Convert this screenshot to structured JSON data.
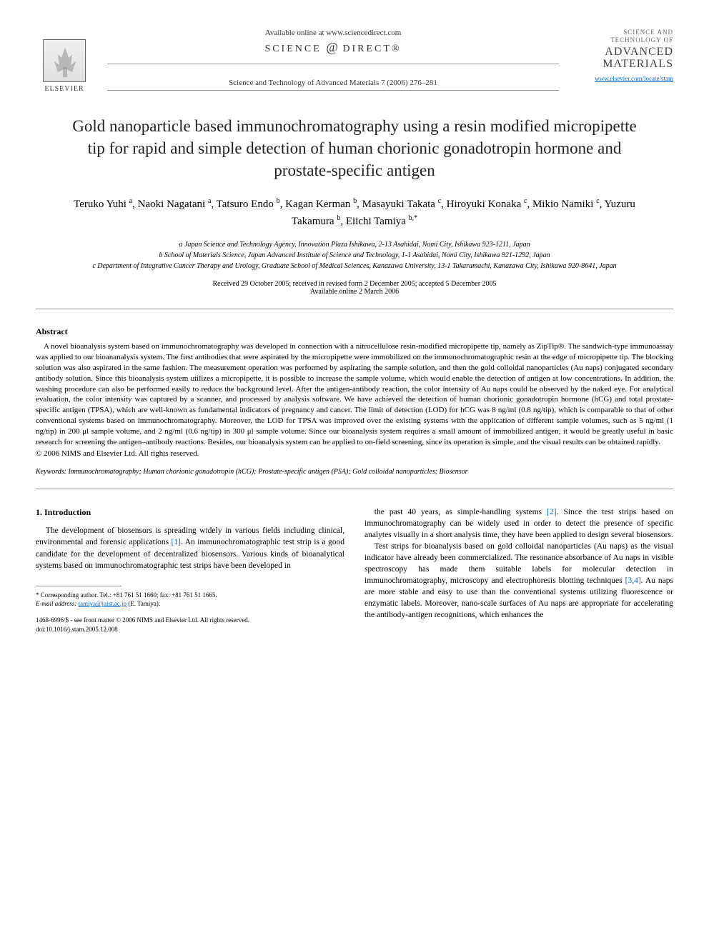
{
  "header": {
    "elsevier_label": "ELSEVIER",
    "available_online": "Available online at www.sciencedirect.com",
    "science_direct": "SCIENCE",
    "science_direct_at": "@",
    "science_direct_suffix": "DIRECT®",
    "journal_reference": "Science and Technology of Advanced Materials 7 (2006) 276–281",
    "journal_logo_top": "SCIENCE AND TECHNOLOGY OF",
    "journal_logo_main": "ADVANCED MATERIALS",
    "journal_url": "www.elsevier.com/locate/stam"
  },
  "title": "Gold nanoparticle based immunochromatography using a resin modified micropipette tip for rapid and simple detection of human chorionic gonadotropin hormone and prostate-specific antigen",
  "authors_html": "Teruko Yuhi <sup>a</sup>, Naoki Nagatani <sup>a</sup>, Tatsuro Endo <sup>b</sup>, Kagan Kerman <sup>b</sup>, Masayuki Takata <sup>c</sup>, Hiroyuki Konaka <sup>c</sup>, Mikio Namiki <sup>c</sup>, Yuzuru Takamura <sup>b</sup>, Eiichi Tamiya <sup>b,*</sup>",
  "affiliations": [
    "a Japan Science and Technology Agency, Innovation Plaza Ishikawa, 2-13 Asahidai, Nomi City, Ishikawa 923-1211, Japan",
    "b School of Materials Science, Japan Advanced Institute of Science and Technology, 1-1 Asahidai, Nomi City, Ishikawa 921-1292, Japan",
    "c Department of Integrative Cancer Therapy and Urology, Graduate School of Medical Sciences, Kanazawa University, 13-1 Takaramachi, Kanazawa City, Ishikawa 920-8641, Japan"
  ],
  "dates": {
    "received": "Received 29 October 2005; received in revised form 2 December 2005; accepted 5 December 2005",
    "available": "Available online 2 March 2006"
  },
  "abstract": {
    "heading": "Abstract",
    "text": "A novel bioanalysis system based on immunochromatography was developed in connection with a nitrocellulose resin-modified micropipette tip, namely as ZipTip®. The sandwich-type immunoassay was applied to our bioananalysis system. The first antibodies that were aspirated by the micropipette were immobilized on the immunochromatographic resin at the edge of micropipette tip. The blocking solution was also aspirated in the same fashion. The measurement operation was performed by aspirating the sample solution, and then the gold colloidal nanoparticles (Au naps) conjugated secondary antibody solution. Since this bioanalysis system utilizes a micropipette, it is possible to increase the sample volume, which would enable the detection of antigen at low concentrations. In addition, the washing procedure can also be performed easily to reduce the background level. After the antigen-antibody reaction, the color intensity of Au naps could be observed by the naked eye. For analytical evaluation, the color intensity was captured by a scanner, and processed by analysis software. We have achieved the detection of human chorionic gonadotropin hormone (hCG) and total prostate-specific antigen (TPSA), which are well-known as fundamental indicators of pregnancy and cancer. The limit of detection (LOD) for hCG was 8 ng/ml (0.8 ng/tip), which is comparable to that of other conventional systems based on immunochromatography. Moreover, the LOD for TPSA was improved over the existing systems with the application of different sample volumes, such as 5 ng/ml (1 ng/tip) in 200 μl sample volume, and 2 ng/ml (0.6 ng/tip) in 300 μl sample volume. Since our bioanalysis system requires a small amount of immobilized antigen, it would be greatly useful in basic research for screening the antigen–antibody reactions. Besides, our bioanalysis system can be applied to on-field screening, since its operation is simple, and the visual results can be obtained rapidly.",
    "copyright": "© 2006 NIMS and Elsevier Ltd. All rights reserved."
  },
  "keywords": {
    "label": "Keywords:",
    "text": "Immunochromatography; Human chorionic gonadotropin (hCG); Prostate-specific antigen (PSA); Gold colloidal nanoparticles; Biosensor"
  },
  "body": {
    "section_heading": "1. Introduction",
    "col1_p1": "The development of biosensors is spreading widely in various fields including clinical, environmental and forensic applications [1]. An immunochromatographic test strip is a good candidate for the development of decentralized biosensors. Various kinds of bioanalytical systems based on immunochromatographic test strips have been developed in",
    "col2_p1": "the past 40 years, as simple-handling systems [2]. Since the test strips based on immunochromatography can be widely used in order to detect the presence of specific analytes visually in a short analysis time, they have been applied to design several biosensors.",
    "col2_p2": "Test strips for bioanalysis based on gold colloidal nanoparticles (Au naps) as the visual indicator have already been commercialized. The resonance absorbance of Au naps in visible spectroscopy has made them suitable labels for molecular detection in immunochromatography, microscopy and electrophoresis blotting techniques [3,4]. Au naps are more stable and easy to use than the conventional systems utilizing fluorescence or enzymatic labels. Moreover, nano-scale surfaces of Au naps are appropriate for accelerating the antibody-antigen recognitions, which enhances the"
  },
  "footnote": {
    "corresponding": "* Corresponding author. Tel.: +81 761 51 1660; fax: +81 761 51 1665.",
    "email_label": "E-mail address:",
    "email": "tamiya@jaist.ac.jp",
    "email_suffix": "(E. Tamiya)."
  },
  "footer": {
    "issn": "1468-6996/$ - see front matter © 2006 NIMS and Elsevier Ltd. All rights reserved.",
    "doi": "doi:10.1016/j.stam.2005.12.008"
  },
  "ref_links": {
    "r1": "[1]",
    "r2": "[2]",
    "r34": "[3,4]"
  }
}
